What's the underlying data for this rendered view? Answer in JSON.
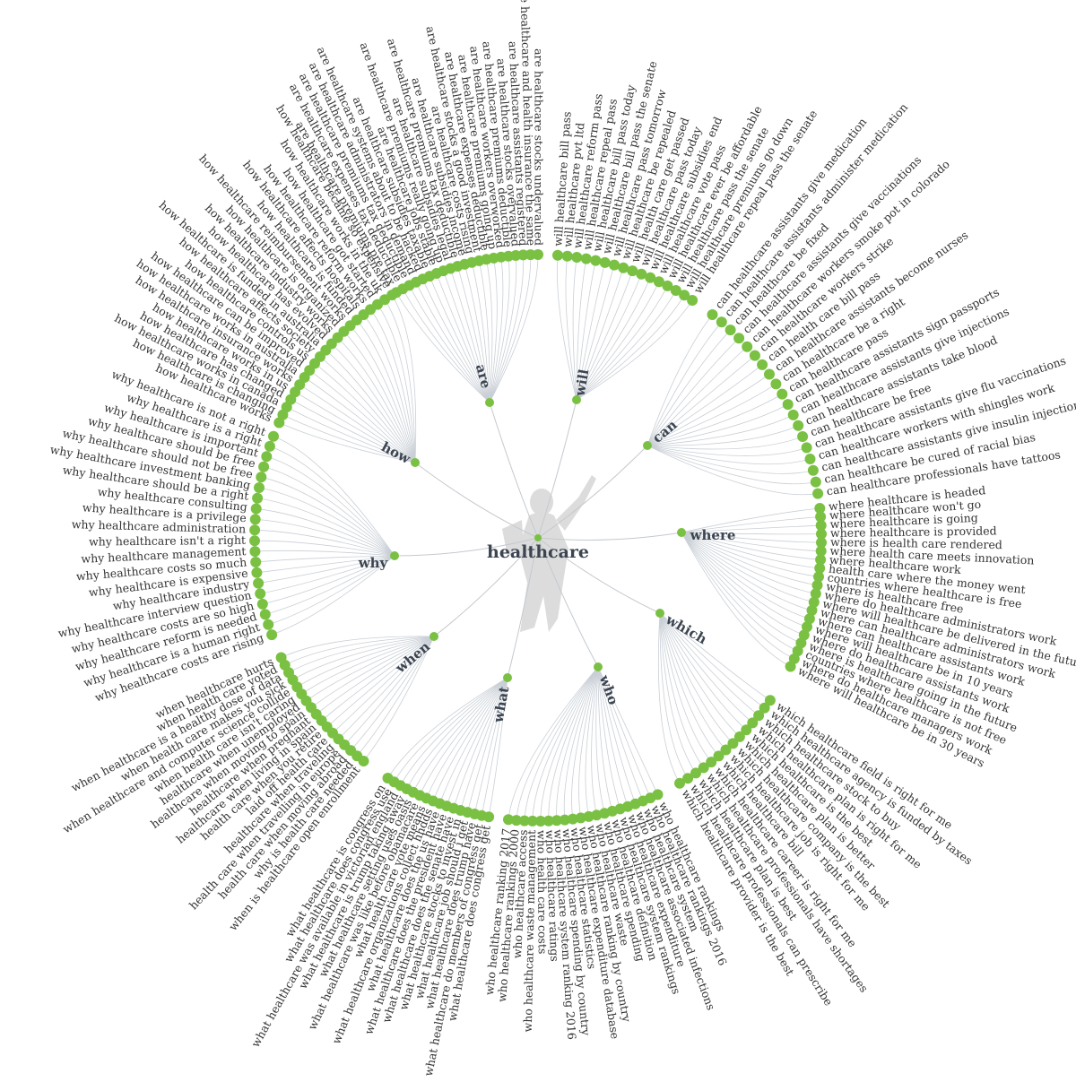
{
  "root": "healthcare",
  "colors": {
    "node": "#7ac143",
    "branch": "#c9cfd6",
    "text": "#333333",
    "category_text": "#3b4450",
    "figure": "#dcdcdc"
  },
  "figure_icon": "person-silhouette-icon",
  "categories": [
    {
      "name": "will",
      "leaves": [
        "will healthcare bill pass",
        "will healthcare pvt ltd",
        "will healthcare reform pass",
        "will healthcare repeal pass",
        "will healthcare bill pass today",
        "will healthcare bill pass the senate",
        "will healthcare pass tomorrow",
        "will healthcare be repealed",
        "will health care get passed",
        "will healthcare pass today",
        "will healthcare subsidies end",
        "will healthcare vote pass",
        "will healthcare ever be affordable",
        "will healthcare pass the senate",
        "will healthcare premiums go down",
        "will healthcare repeal pass the senate"
      ]
    },
    {
      "name": "can",
      "leaves": [
        "can healthcare assistants give medication",
        "can healthcare assistants administer medication",
        "can healthcare be fixed",
        "can healthcare assistants give vaccinations",
        "can healthcare workers smoke pot in colorado",
        "can healthcare workers strike",
        "can health care bill pass",
        "can healthcare assistants become nurses",
        "can healthcare be a right",
        "can healthcare pass",
        "can healthcare assistants sign passports",
        "can healthcare assistants give injections",
        "can healthcare assistants take blood",
        "can healthcare be free",
        "can healthcare assistants give flu vaccinations",
        "can healthcare workers with shingles work",
        "can healthcare assistants give insulin injections",
        "can healthcare be cured of racial bias",
        "can healthcare professionals have tattoos"
      ]
    },
    {
      "name": "where",
      "leaves": [
        "where healthcare is headed",
        "where healthcare won't go",
        "where healthcare is going",
        "where healthcare is provided",
        "where is health care rendered",
        "where health care meets innovation",
        "where healthcare work",
        "health care where the money went",
        "countries where healthcare is free",
        "where is healthcare free",
        "where do healthcare administrators work",
        "where will healthcare be delivered in the future",
        "where can healthcare administrators work",
        "where can healthcare assistants work",
        "where will healthcare be in 10 years",
        "where do healthcare assistants work",
        "where is healthcare going in the future",
        "countries where healthcare is not free",
        "where do healthcare managers work",
        "where will healthcare be in 30 years"
      ]
    },
    {
      "name": "which",
      "leaves": [
        "which healthcare field is right for me",
        "which healthcare agency is funded by taxes",
        "which healthcare stock to buy",
        "which healthcare plan is right for me",
        "which healthcare is the best",
        "which healthcare plan is better",
        "which healthcare company is the best",
        "which healthcare job is right for me",
        "which healthcare bill",
        "which healthcare career is right for me",
        "which healthcare professionals have shortages",
        "which healthcare plan is best",
        "which healthcare professionals can prescribe",
        "which healthcare provider is the best"
      ]
    },
    {
      "name": "who",
      "leaves": [
        "who healthcare rankings",
        "who healthcare rankings 2016",
        "who healthcare system",
        "who healthcare associated infections",
        "who healthcare expenditure",
        "who healthcare system rankings",
        "who healthcare definition",
        "who healthcare spending",
        "who healthcare waste",
        "who healthcare ranking by country",
        "who healthcare expenditure database",
        "who healthcare statistics",
        "who healthcare spending by country",
        "who healthcare system ranking 2016",
        "who healthcare ratings",
        "who health care costs",
        "who healthcare waste management",
        "who healthcare access",
        "who healthcare rankings 2000",
        "who healthcare ranking 2017"
      ]
    },
    {
      "name": "what",
      "leaves": [
        "what healthcare does congress get",
        "what healthcare do members of congress get",
        "what healthcare does trump have",
        "what healthcare job should i get",
        "what healthcare stocks to invest in",
        "what healthcare does the senate have",
        "what healthcare does the president have",
        "what healthcare does the us have",
        "what healthcare organizations collect hhdds",
        "what health care vote means",
        "what healthcare was like before obamacare",
        "what healthcare setting uses oasis",
        "what healthcare is trump taking away",
        "what healthcare was available in victorian england",
        "what healthcare does congress use",
        "what healthcare is congress on"
      ]
    },
    {
      "name": "when",
      "leaves": [
        "when is healthcare open enrollment",
        "why is health care needed",
        "health care when moving abroad",
        "health care when travelling in europe",
        "healthcare when traveling",
        "laid off health care",
        "health care when you retire",
        "healthcare when living in spain",
        "healthcare when pregnant",
        "healthcare when moving to spain",
        "healthcare when unemployed",
        "when health care isn't caring",
        "when healthcare and computer science collide",
        "when health care makes you sick",
        "when healthcare is a healthy dose of data",
        "when health care voted",
        "when healthcare hurts"
      ]
    },
    {
      "name": "why",
      "leaves": [
        "why healthcare costs are rising",
        "why healthcare is a human right",
        "why healthcare reform is needed",
        "why healthcare costs are so high",
        "why healthcare interview question",
        "why healthcare industry",
        "why healthcare is expensive",
        "why healthcare costs so much",
        "why healthcare management",
        "why healthcare isn't a right",
        "why healthcare administration",
        "why healthcare is a privilege",
        "why healthcare consulting",
        "why healthcare should be a right",
        "why healthcare investment banking",
        "why healthcare should not be free",
        "why healthcare should be free",
        "why healthcare is important",
        "why healthcare is a right",
        "why healthcare is not a right"
      ]
    },
    {
      "name": "how",
      "leaves": [
        "how healthcare works",
        "how healthcare is changing",
        "how healthcare works in canada",
        "how healthcare has changed",
        "how healthcare works in us",
        "how healthcare insurance works",
        "how healthcare works in australia",
        "how healthcare can be improved",
        "how healthcare controls us",
        "how healthcare affects society",
        "how healthcare is funded in australia",
        "how healthcare has evolved",
        "how healthcare industry works",
        "how healthcare is organized",
        "how healthcare reimbursement works",
        "how healthcare is funded",
        "how healthcare affects hospitals",
        "how healthcare reform works",
        "how healthcare got started",
        "how healthcare works in the uk",
        "how healthcare became so expensive"
      ]
    },
    {
      "name": "are",
      "leaves": [
        "are healthcare premiums pre tax",
        "are healthcare expenses tax deductible",
        "are healthcare premiums tax deductible",
        "are healthcare administrators in demand",
        "are healthcare systems about to be hacked",
        "are healthcare subsidies taxable",
        "are healthcare jobs stable",
        "are healthcare premiums really going up",
        "are healthcare subsidies legal",
        "are healthcare premiums tax deductible",
        "are healthcare subsidies income",
        "are healthcare costs rising",
        "are healthcare stocks a good investment",
        "are healthcare expenses deductible",
        "are healthcare premiums going up",
        "are healthcare workers overworked",
        "are healthcare premiums deductible",
        "are healthcare stocks overvalued",
        "are healthcare assistants registered",
        "are healthcare and health insurance the same",
        "are healthcare stocks undervalued"
      ]
    }
  ]
}
